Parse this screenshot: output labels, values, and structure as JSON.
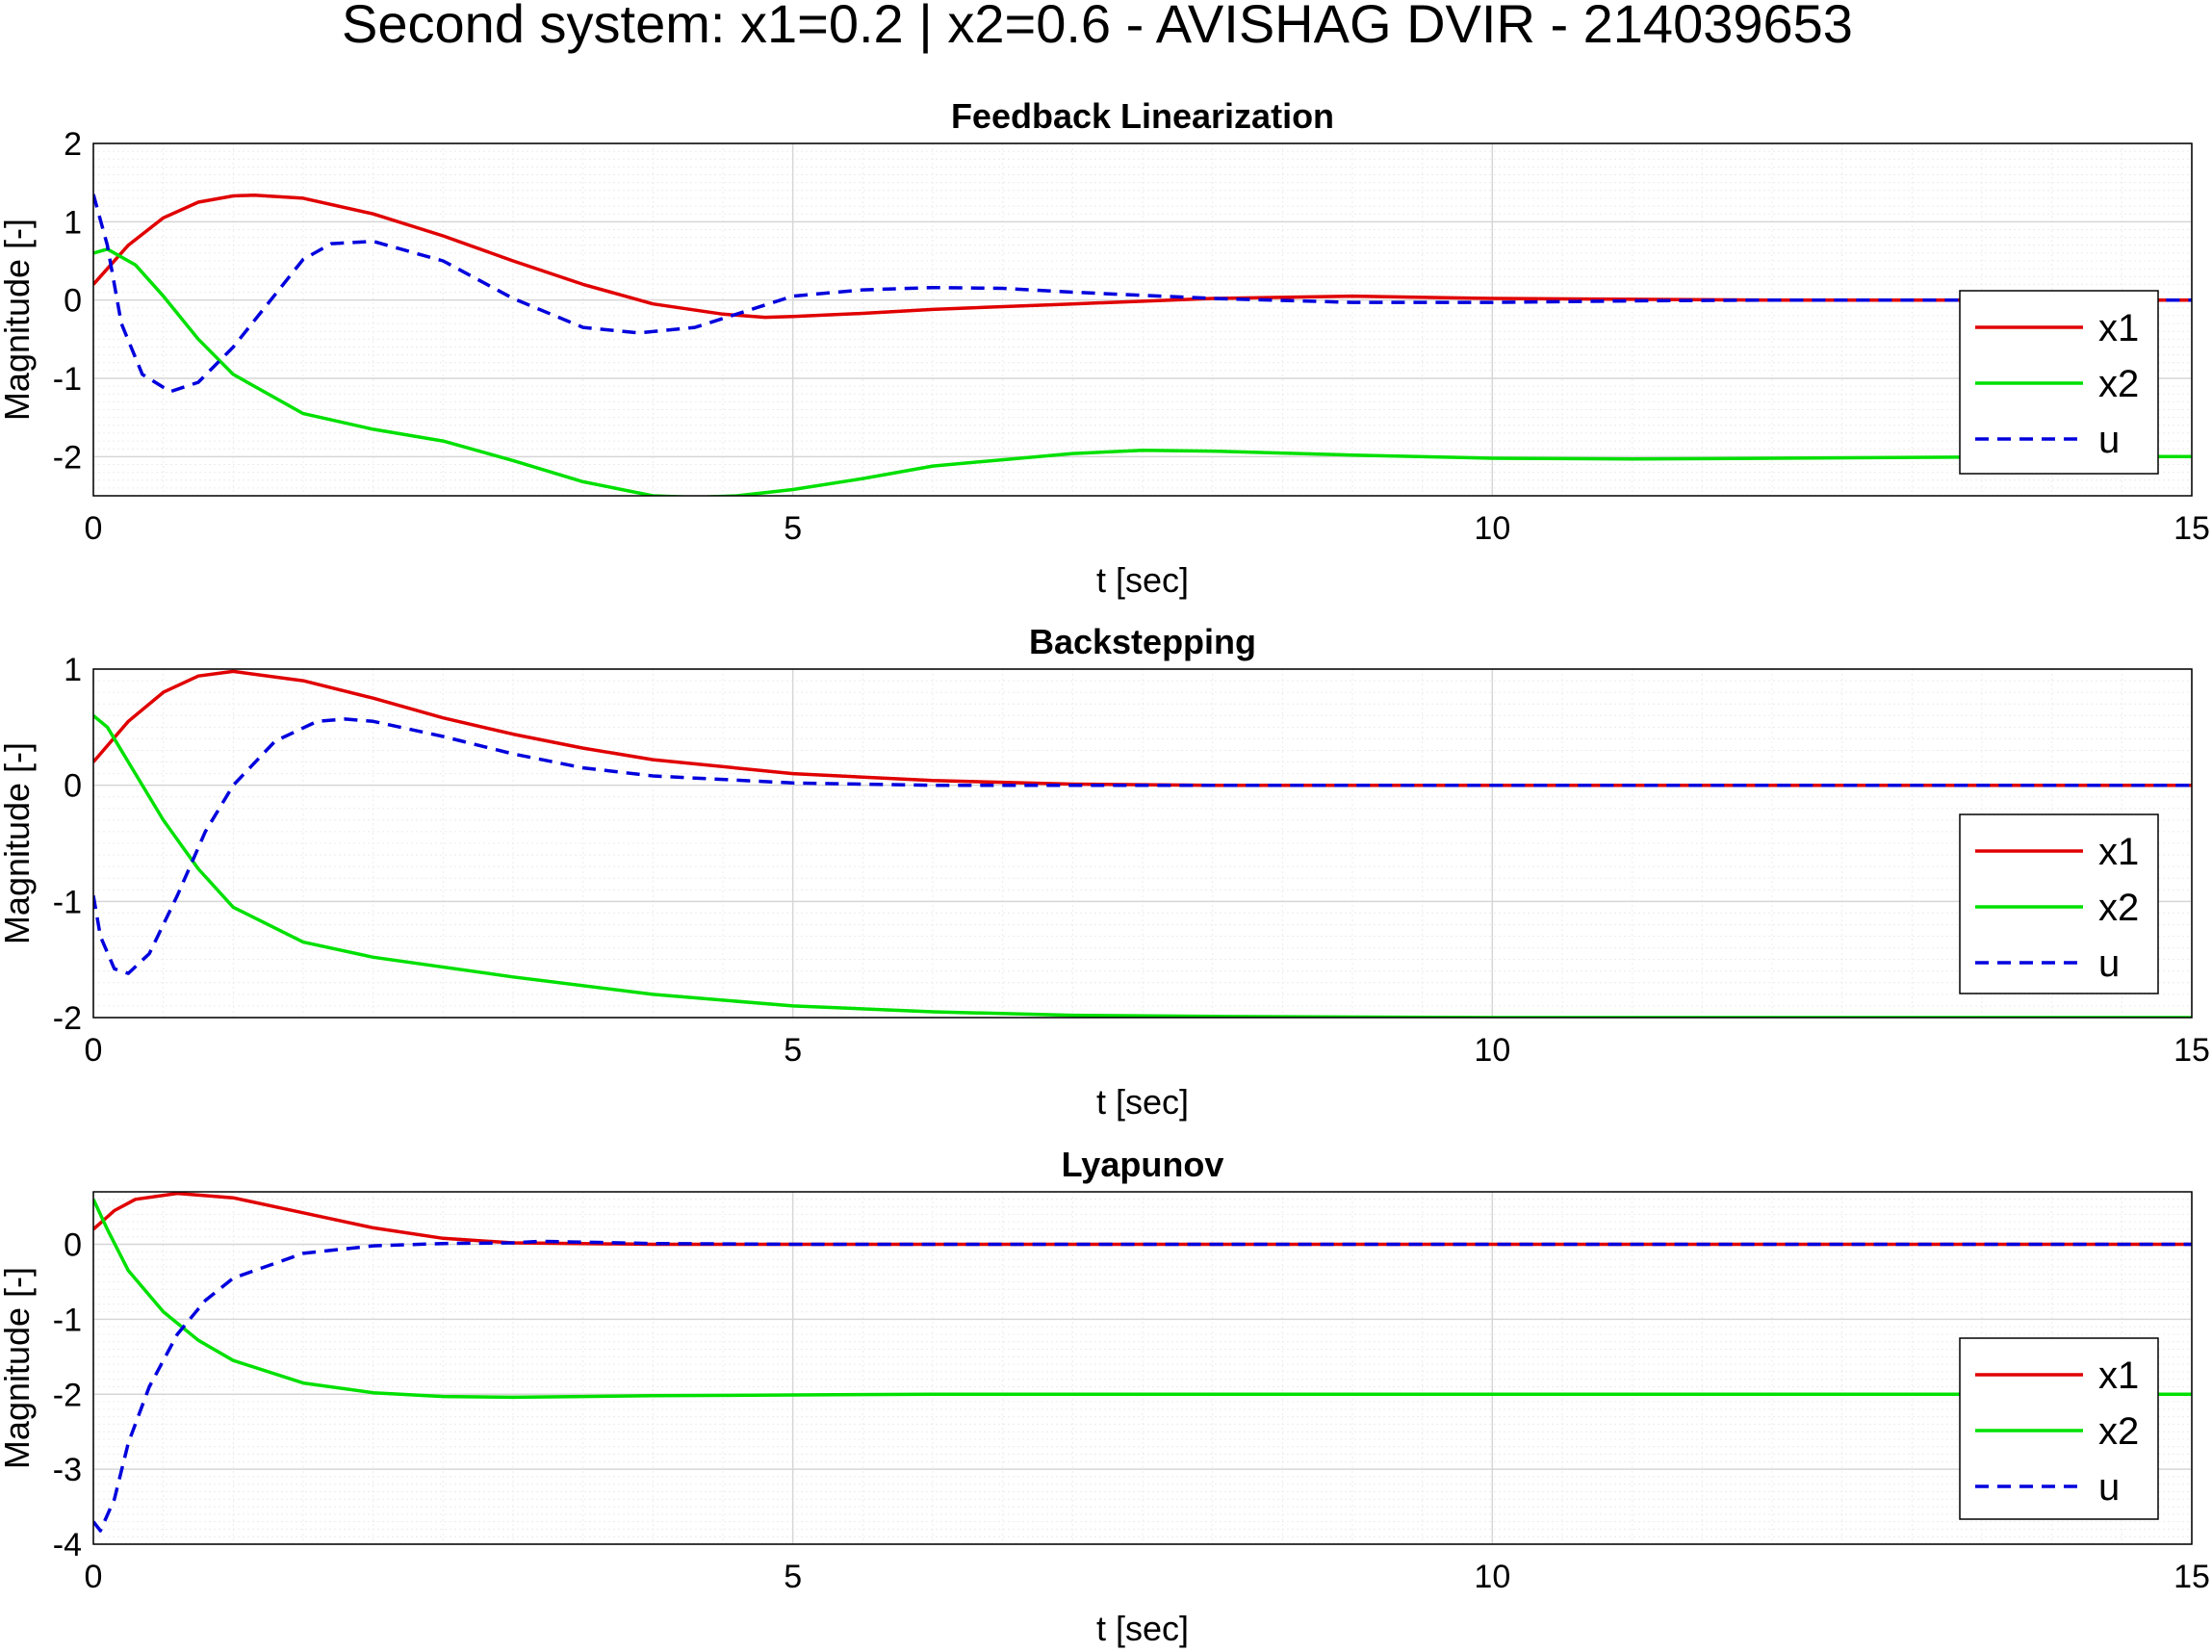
{
  "figure": {
    "title": "Second system: x1=0.2 | x2=0.6 - AVISHAG DVIR - 214039653"
  },
  "colors": {
    "x1": "#e00000",
    "x2": "#00e000",
    "u": "#0000dd",
    "grid_major": "#d6d6d6",
    "grid_minor": "#ececec"
  },
  "chart_data": [
    {
      "type": "line",
      "title": "Feedback Linearization",
      "xlabel": "t [sec]",
      "ylabel": "Magnitude [-]",
      "xlim": [
        0,
        15
      ],
      "ylim": [
        -2.5,
        2
      ],
      "xticks": [
        "0",
        "5",
        "10",
        "15"
      ],
      "yticks": [
        "-2",
        "-1",
        "0",
        "1",
        "2"
      ],
      "grid": true,
      "minor_grid": true,
      "legend": [
        "x1",
        "x2",
        "u"
      ],
      "legend_location": "east",
      "series": [
        {
          "name": "x1",
          "style": "solid",
          "x": [
            0,
            0.25,
            0.5,
            0.75,
            1,
            1.15,
            1.5,
            2,
            2.5,
            3,
            3.5,
            4,
            4.5,
            4.8,
            5,
            5.5,
            6,
            7,
            8,
            9,
            10,
            11,
            12,
            13,
            14,
            15
          ],
          "y": [
            0.2,
            0.7,
            1.05,
            1.25,
            1.33,
            1.34,
            1.3,
            1.1,
            0.82,
            0.5,
            0.2,
            -0.05,
            -0.18,
            -0.22,
            -0.21,
            -0.17,
            -0.12,
            -0.05,
            0.02,
            0.05,
            0.02,
            0.01,
            0,
            0,
            0,
            0
          ]
        },
        {
          "name": "x2",
          "style": "solid",
          "x": [
            0,
            0.1,
            0.3,
            0.5,
            0.75,
            1,
            1.5,
            2,
            2.5,
            3,
            3.5,
            4,
            4.3,
            4.6,
            5,
            5.5,
            6,
            7,
            7.5,
            8,
            9,
            10,
            11,
            12,
            13,
            14,
            15
          ],
          "y": [
            0.6,
            0.65,
            0.45,
            0.05,
            -0.5,
            -0.95,
            -1.45,
            -1.65,
            -1.8,
            -2.05,
            -2.32,
            -2.5,
            -2.52,
            -2.5,
            -2.42,
            -2.28,
            -2.12,
            -1.96,
            -1.92,
            -1.93,
            -1.98,
            -2.02,
            -2.03,
            -2.02,
            -2.01,
            -2,
            -2
          ]
        },
        {
          "name": "u",
          "style": "dashed",
          "x": [
            0,
            0.1,
            0.2,
            0.35,
            0.55,
            0.75,
            1,
            1.5,
            1.7,
            2,
            2.5,
            3,
            3.5,
            3.9,
            4.3,
            5,
            5.5,
            6,
            6.5,
            7,
            8,
            9,
            10,
            11,
            12,
            13,
            14,
            15
          ],
          "y": [
            1.35,
            0.7,
            -0.3,
            -0.95,
            -1.17,
            -1.05,
            -0.6,
            0.52,
            0.72,
            0.75,
            0.5,
            0.02,
            -0.35,
            -0.42,
            -0.35,
            0.05,
            0.13,
            0.16,
            0.15,
            0.1,
            0.02,
            -0.03,
            -0.03,
            -0.01,
            0,
            0,
            0,
            0
          ]
        }
      ]
    },
    {
      "type": "line",
      "title": "Backstepping",
      "xlabel": "t [sec]",
      "ylabel": "Magnitude [-]",
      "xlim": [
        0,
        15
      ],
      "ylim": [
        -2,
        1
      ],
      "xticks": [
        "0",
        "5",
        "10",
        "15"
      ],
      "yticks": [
        "-2",
        "-1",
        "0",
        "1"
      ],
      "grid": true,
      "minor_grid": true,
      "legend": [
        "x1",
        "x2",
        "u"
      ],
      "legend_location": "southeast",
      "series": [
        {
          "name": "x1",
          "style": "solid",
          "x": [
            0,
            0.25,
            0.5,
            0.75,
            1,
            1.5,
            2,
            2.5,
            3,
            3.5,
            4,
            5,
            6,
            7,
            8,
            10,
            12,
            15
          ],
          "y": [
            0.2,
            0.55,
            0.8,
            0.94,
            0.98,
            0.9,
            0.75,
            0.58,
            0.44,
            0.32,
            0.22,
            0.1,
            0.04,
            0.01,
            0,
            0,
            0,
            0
          ]
        },
        {
          "name": "x2",
          "style": "solid",
          "x": [
            0,
            0.1,
            0.3,
            0.5,
            0.75,
            1,
            1.5,
            2,
            3,
            4,
            5,
            6,
            7,
            8,
            10,
            12,
            15
          ],
          "y": [
            0.6,
            0.5,
            0.1,
            -0.3,
            -0.72,
            -1.05,
            -1.35,
            -1.48,
            -1.65,
            -1.8,
            -1.9,
            -1.95,
            -1.98,
            -1.99,
            -2,
            -2,
            -2
          ]
        },
        {
          "name": "u",
          "style": "dashed",
          "x": [
            0,
            0.05,
            0.15,
            0.25,
            0.4,
            0.6,
            0.8,
            1,
            1.3,
            1.6,
            1.8,
            2,
            2.5,
            3,
            3.5,
            4,
            5,
            6,
            7,
            8,
            10,
            15
          ],
          "y": [
            -0.95,
            -1.3,
            -1.58,
            -1.62,
            -1.45,
            -0.95,
            -0.4,
            0.0,
            0.38,
            0.55,
            0.57,
            0.55,
            0.42,
            0.27,
            0.15,
            0.08,
            0.02,
            0,
            0,
            0,
            0,
            0
          ]
        }
      ]
    },
    {
      "type": "line",
      "title": "Lyapunov",
      "xlabel": "t [sec]",
      "ylabel": "Magnitude [-]",
      "xlim": [
        0,
        15
      ],
      "ylim": [
        -4,
        0.7
      ],
      "xticks": [
        "0",
        "5",
        "10",
        "15"
      ],
      "yticks": [
        "-4",
        "-3",
        "-2",
        "-1",
        "0"
      ],
      "grid": true,
      "minor_grid": true,
      "legend": [
        "x1",
        "x2",
        "u"
      ],
      "legend_location": "southeast",
      "series": [
        {
          "name": "x1",
          "style": "solid",
          "x": [
            0,
            0.15,
            0.3,
            0.6,
            1,
            1.5,
            2,
            2.5,
            3,
            4,
            5,
            6,
            8,
            10,
            15
          ],
          "y": [
            0.2,
            0.45,
            0.6,
            0.68,
            0.62,
            0.42,
            0.22,
            0.08,
            0.02,
            0,
            0,
            0,
            0,
            0,
            0
          ]
        },
        {
          "name": "x2",
          "style": "solid",
          "x": [
            0,
            0.1,
            0.25,
            0.5,
            0.75,
            1,
            1.5,
            2,
            2.5,
            3,
            3.5,
            4,
            5,
            6,
            8,
            10,
            12,
            15
          ],
          "y": [
            0.6,
            0.2,
            -0.35,
            -0.9,
            -1.28,
            -1.55,
            -1.85,
            -1.98,
            -2.03,
            -2.04,
            -2.03,
            -2.02,
            -2.01,
            -2,
            -2,
            -2,
            -2,
            -2
          ]
        },
        {
          "name": "u",
          "style": "dashed",
          "x": [
            0,
            0.05,
            0.15,
            0.25,
            0.4,
            0.6,
            0.8,
            1,
            1.5,
            2,
            2.5,
            3,
            3.2,
            4,
            5,
            6,
            8,
            10,
            15
          ],
          "y": [
            -3.7,
            -3.82,
            -3.4,
            -2.65,
            -1.9,
            -1.2,
            -0.75,
            -0.45,
            -0.12,
            -0.02,
            0.01,
            0.02,
            0.04,
            0.01,
            0,
            0,
            0,
            0,
            0
          ]
        }
      ]
    }
  ]
}
